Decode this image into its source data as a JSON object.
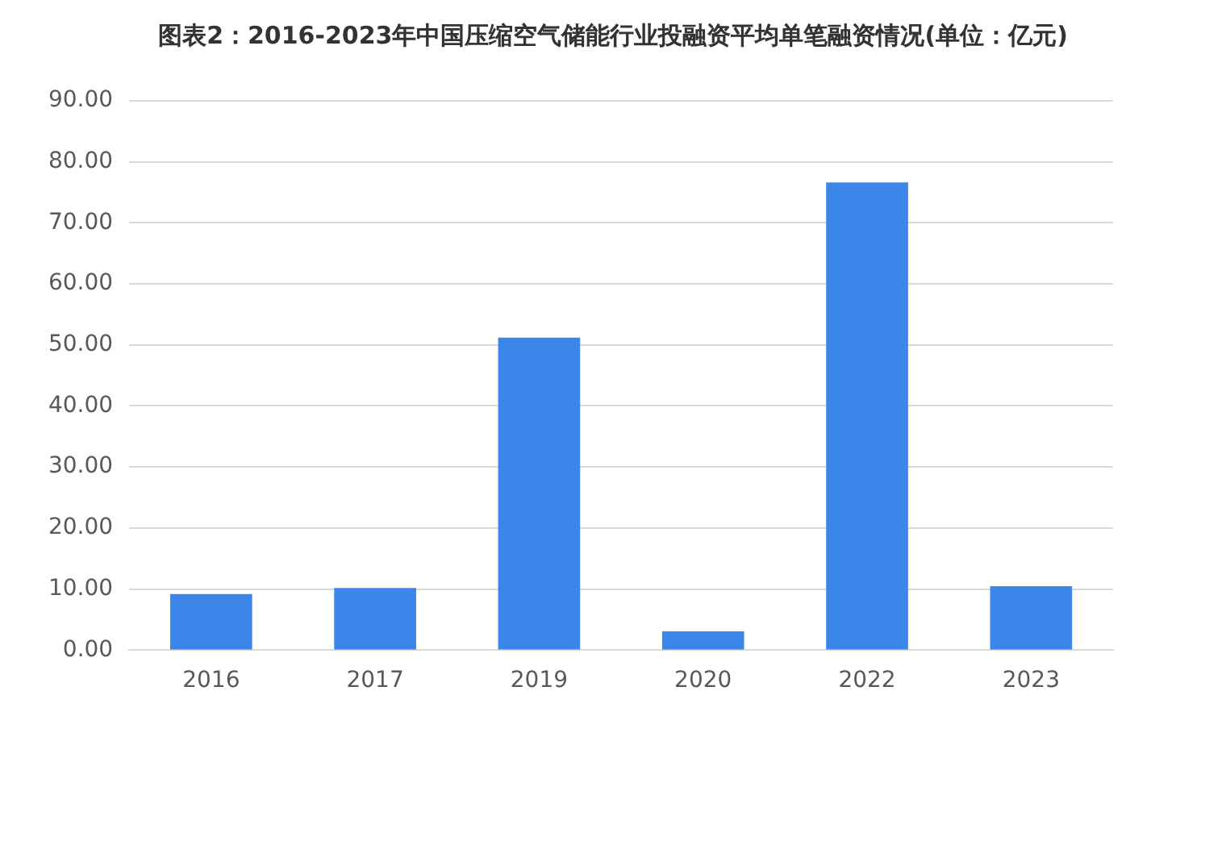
{
  "chart_data": {
    "type": "bar",
    "title": "图表2：2016-2023年中国压缩空气储能行业投融资平均单笔融资情况(单位：亿元)",
    "categories": [
      "2016",
      "2017",
      "2019",
      "2020",
      "2022",
      "2023"
    ],
    "values": [
      9.2,
      10.2,
      51.2,
      3.1,
      76.6,
      10.5
    ],
    "color": "#3b86e8",
    "ylim": [
      0,
      90
    ],
    "yticks": [
      {
        "value": 0,
        "label": "0.00"
      },
      {
        "value": 10,
        "label": "10.00"
      },
      {
        "value": 20,
        "label": "20.00"
      },
      {
        "value": 30,
        "label": "30.00"
      },
      {
        "value": 40,
        "label": "40.00"
      },
      {
        "value": 50,
        "label": "50.00"
      },
      {
        "value": 60,
        "label": "60.00"
      },
      {
        "value": 70,
        "label": "70.00"
      },
      {
        "value": 80,
        "label": "80.00"
      },
      {
        "value": 90,
        "label": "90.00"
      }
    ],
    "grid": "y"
  }
}
